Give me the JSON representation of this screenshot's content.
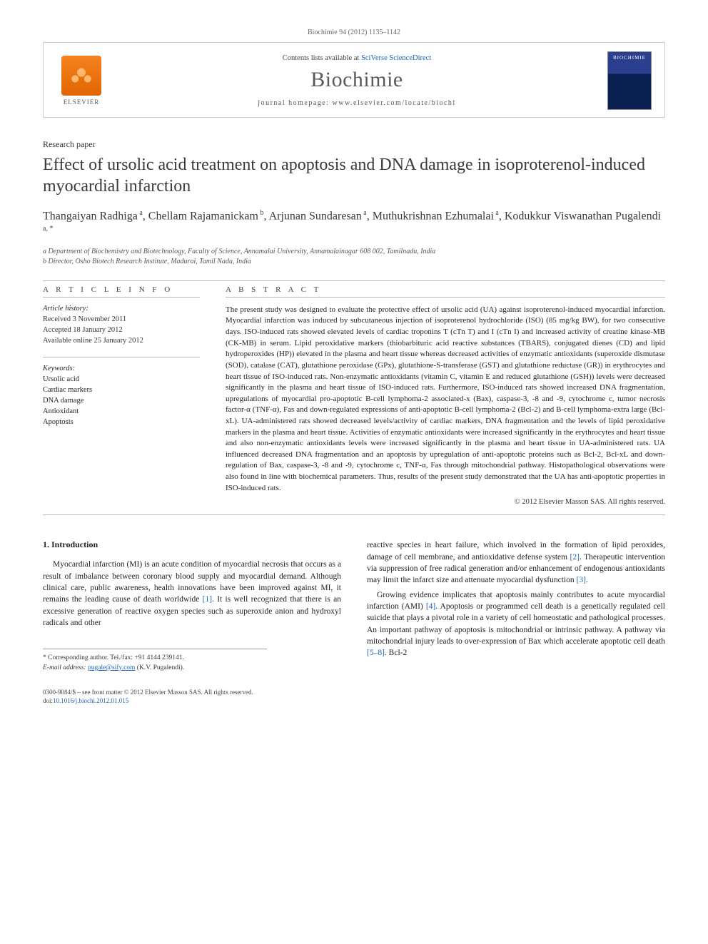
{
  "running_head": "Biochimie 94 (2012) 1135–1142",
  "header": {
    "publisher_logo_text": "ELSEVIER",
    "contents_prefix": "Contents lists available at ",
    "contents_link": "SciVerse ScienceDirect",
    "journal": "Biochimie",
    "homepage_label": "journal homepage: ",
    "homepage_url": "www.elsevier.com/locate/biochi",
    "cover_word": "BIOCHIMIE"
  },
  "article_type": "Research paper",
  "title": "Effect of ursolic acid treatment on apoptosis and DNA damage in isoproterenol-induced myocardial infarction",
  "authors_html": "Thangaiyan Radhiga<sup> a</sup>, Chellam Rajamanickam<sup> b</sup>, Arjunan Sundaresan<sup> a</sup>, Muthukrishnan Ezhumalai<sup> a</sup>, Kodukkur Viswanathan Pugalendi<sup> a, *</sup>",
  "affiliations": {
    "a": "a Department of Biochemistry and Biotechnology, Faculty of Science, Annamalai University, Annamalainagar 608 002, Tamilnadu, India",
    "b": "b Director, Osho Biotech Research Institute, Madurai, Tamil Nadu, India"
  },
  "info": {
    "head": "A R T I C L E   I N F O",
    "history_head": "Article history:",
    "received": "Received 3 November 2011",
    "accepted": "Accepted 18 January 2012",
    "online": "Available online 25 January 2012",
    "kw_head": "Keywords:",
    "keywords": [
      "Ursolic acid",
      "Cardiac markers",
      "DNA damage",
      "Antioxidant",
      "Apoptosis"
    ]
  },
  "abstract": {
    "head": "A B S T R A C T",
    "text": "The present study was designed to evaluate the protective effect of ursolic acid (UA) against isoproterenol-induced myocardial infarction. Myocardial infarction was induced by subcutaneous injection of isoproterenol hydrochloride (ISO) (85 mg/kg BW), for two consecutive days. ISO-induced rats showed elevated levels of cardiac troponins T (cTn T) and I (cTn I) and increased activity of creatine kinase-MB (CK-MB) in serum. Lipid peroxidative markers (thiobarbituric acid reactive substances (TBARS), conjugated dienes (CD) and lipid hydroperoxides (HP)) elevated in the plasma and heart tissue whereas decreased activities of enzymatic antioxidants (superoxide dismutase (SOD), catalase (CAT), glutathione peroxidase (GPx), glutathione-S-transferase (GST) and glutathione reductase (GR)) in erythrocytes and heart tissue of ISO-induced rats. Non-enzymatic antioxidants (vitamin C, vitamin E and reduced glutathione (GSH)) levels were decreased significantly in the plasma and heart tissue of ISO-induced rats. Furthermore, ISO-induced rats showed increased DNA fragmentation, upregulations of myocardial pro-apoptotic B-cell lymphoma-2 associated-x (Bax), caspase-3, -8 and -9, cytochrome c, tumor necrosis factor-α (TNF-α), Fas and down-regulated expressions of anti-apoptotic B-cell lymphoma-2 (Bcl-2) and B-cell lymphoma-extra large (Bcl-xL). UA-administered rats showed decreased levels/activity of cardiac markers, DNA fragmentation and the levels of lipid peroxidative markers in the plasma and heart tissue. Activities of enzymatic antioxidants were increased significantly in the erythrocytes and heart tissue and also non-enzymatic antioxidants levels were increased significantly in the plasma and heart tissue in UA-administered rats. UA influenced decreased DNA fragmentation and an apoptosis by upregulation of anti-apoptotic proteins such as Bcl-2, Bcl-xL and down-regulation of Bax, caspase-3, -8 and -9, cytochrome c, TNF-α, Fas through mitochondrial pathway. Histopathological observations were also found in line with biochemical parameters. Thus, results of the present study demonstrated that the UA has anti-apoptotic properties in ISO-induced rats.",
    "copyright": "© 2012 Elsevier Masson SAS. All rights reserved."
  },
  "section1": {
    "head": "1.  Introduction",
    "para1": "Myocardial infarction (MI) is an acute condition of myocardial necrosis that occurs as a result of imbalance between coronary blood supply and myocardial demand. Although clinical care, public awareness, health innovations have been improved against MI, it remains the leading cause of death worldwide [1]. It is well recognized that there is an excessive generation of reactive oxygen species such as superoxide anion and hydroxyl radicals and other",
    "para2": "reactive species in heart failure, which involved in the formation of lipid peroxides, damage of cell membrane, and antioxidative defense system [2]. Therapeutic intervention via suppression of free radical generation and/or enhancement of endogenous antioxidants may limit the infarct size and attenuate myocardial dysfunction [3].",
    "para3": "Growing evidence implicates that apoptosis mainly contributes to acute myocardial infarction (AMI) [4]. Apoptosis or programmed cell death is a genetically regulated cell suicide that plays a pivotal role in a variety of cell homeostatic and pathological processes. An important pathway of apoptosis is mitochondrial or intrinsic pathway. A pathway via mitochondrial injury leads to over-expression of Bax which accelerate apoptotic cell death [5–8]. Bcl-2"
  },
  "corresponding": {
    "line1": "* Corresponding author. Tel./fax: +91 4144 239141.",
    "line2_label": "E-mail address: ",
    "line2_email": "pugale@sify.com",
    "line2_tail": " (K.V. Pugalendi)."
  },
  "footer": {
    "line1": "0300-9084/$ – see front matter © 2012 Elsevier Masson SAS. All rights reserved.",
    "doi_label": "doi:",
    "doi": "10.1016/j.biochi.2012.01.015"
  },
  "colors": {
    "link": "#1a63b0",
    "text": "#222222",
    "muted": "#555555",
    "rule": "#bbbbbb"
  }
}
